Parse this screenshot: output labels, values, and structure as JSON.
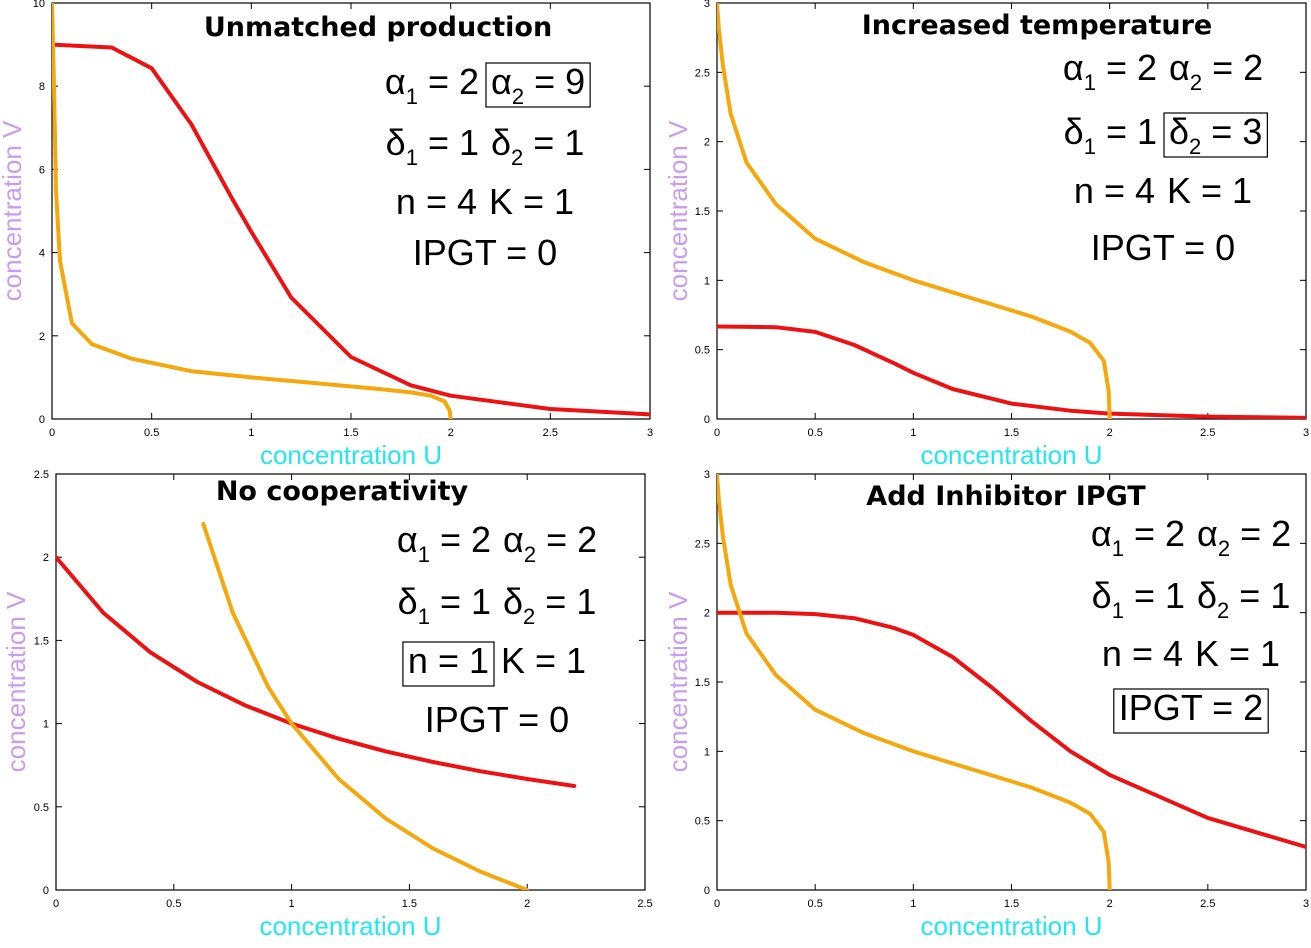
{
  "colors": {
    "V_nullcline": "#ee1111",
    "U_nullcline": "#f5a70c",
    "xlabel": "#22e6f2",
    "ylabel": "#c99cf0",
    "axis": "#000000"
  },
  "chart_data": [
    {
      "type": "line",
      "title": "Unmatched production",
      "xlabel": "concentration U",
      "ylabel": "concentration V",
      "xlim": [
        0,
        3
      ],
      "ylim": [
        0,
        10
      ],
      "xticks": [
        "0",
        "0.5",
        "1",
        "1.5",
        "2",
        "2.5",
        "3"
      ],
      "yticks": [
        "0",
        "2",
        "4",
        "6",
        "8",
        "10"
      ],
      "grid": false,
      "params": {
        "a1": 2,
        "a2": 9,
        "d1": 1,
        "d2": 1,
        "n": 4,
        "K": 1,
        "ipgt": 0
      },
      "highlight": "a2",
      "series": [
        {
          "role": "V",
          "points": [
            [
              0,
              9
            ],
            [
              0.3,
              8.93
            ],
            [
              0.5,
              8.43
            ],
            [
              0.7,
              7.08
            ],
            [
              0.9,
              5.33
            ],
            [
              1,
              4.5
            ],
            [
              1.2,
              2.92
            ],
            [
              1.5,
              1.49
            ],
            [
              1.8,
              0.81
            ],
            [
              2,
              0.56
            ],
            [
              2.5,
              0.24
            ],
            [
              3,
              0.11
            ]
          ]
        },
        {
          "role": "U",
          "points": [
            [
              0,
              10
            ],
            [
              0.01,
              8
            ],
            [
              0.02,
              5.5
            ],
            [
              0.04,
              3.8
            ],
            [
              0.1,
              2.3
            ],
            [
              0.2,
              1.8
            ],
            [
              0.4,
              1.45
            ],
            [
              0.7,
              1.15
            ],
            [
              1,
              1
            ],
            [
              1.3,
              0.87
            ],
            [
              1.6,
              0.74
            ],
            [
              1.8,
              0.64
            ],
            [
              1.9,
              0.56
            ],
            [
              1.97,
              0.42
            ],
            [
              1.995,
              0.2
            ],
            [
              2,
              0
            ]
          ]
        }
      ]
    },
    {
      "type": "line",
      "title": "Increased temperature",
      "xlabel": "concentration U",
      "ylabel": "concentration V",
      "xlim": [
        0,
        3
      ],
      "ylim": [
        0,
        3
      ],
      "xticks": [
        "0",
        "0.5",
        "1",
        "1.5",
        "2",
        "2.5",
        "3"
      ],
      "yticks": [
        "0",
        "0.5",
        "1",
        "1.5",
        "2",
        "2.5",
        "3"
      ],
      "grid": false,
      "params": {
        "a1": 2,
        "a2": 2,
        "d1": 1,
        "d2": 3,
        "n": 4,
        "K": 1,
        "ipgt": 0
      },
      "highlight": "d2",
      "series": [
        {
          "role": "V",
          "points": [
            [
              0,
              0.667
            ],
            [
              0.3,
              0.662
            ],
            [
              0.5,
              0.628
            ],
            [
              0.7,
              0.534
            ],
            [
              0.9,
              0.403
            ],
            [
              1,
              0.333
            ],
            [
              1.2,
              0.216
            ],
            [
              1.5,
              0.111
            ],
            [
              1.8,
              0.06
            ],
            [
              2,
              0.039
            ],
            [
              2.5,
              0.017
            ],
            [
              3,
              0.008
            ]
          ]
        },
        {
          "role": "U",
          "points": [
            [
              0,
              3
            ],
            [
              0.01,
              2.8
            ],
            [
              0.03,
              2.55
            ],
            [
              0.07,
              2.2
            ],
            [
              0.15,
              1.85
            ],
            [
              0.3,
              1.55
            ],
            [
              0.5,
              1.3
            ],
            [
              0.75,
              1.13
            ],
            [
              1,
              1
            ],
            [
              1.3,
              0.87
            ],
            [
              1.6,
              0.74
            ],
            [
              1.8,
              0.63
            ],
            [
              1.9,
              0.55
            ],
            [
              1.97,
              0.42
            ],
            [
              1.995,
              0.2
            ],
            [
              2,
              0
            ]
          ]
        }
      ]
    },
    {
      "type": "line",
      "title": "No cooperativity",
      "xlabel": "concentration U",
      "ylabel": "concentration V",
      "xlim": [
        0,
        2.5
      ],
      "ylim": [
        0,
        2.5
      ],
      "xticks": [
        "0",
        "0.5",
        "1",
        "1.5",
        "2",
        "2.5"
      ],
      "yticks": [
        "0",
        "0.5",
        "1",
        "1.5",
        "2",
        "2.5"
      ],
      "grid": false,
      "params": {
        "a1": 2,
        "a2": 2,
        "d1": 1,
        "d2": 1,
        "n": 1,
        "K": 1,
        "ipgt": 0
      },
      "highlight": "n",
      "series": [
        {
          "role": "V",
          "points": [
            [
              0,
              2
            ],
            [
              0.2,
              1.667
            ],
            [
              0.4,
              1.429
            ],
            [
              0.6,
              1.25
            ],
            [
              0.8,
              1.111
            ],
            [
              1,
              1
            ],
            [
              1.2,
              0.909
            ],
            [
              1.4,
              0.833
            ],
            [
              1.6,
              0.769
            ],
            [
              1.8,
              0.714
            ],
            [
              2,
              0.667
            ],
            [
              2.2,
              0.625
            ]
          ]
        },
        {
          "role": "U",
          "points": [
            [
              0.625,
              2.2
            ],
            [
              0.75,
              1.667
            ],
            [
              0.9,
              1.222
            ],
            [
              1,
              1
            ],
            [
              1.2,
              0.667
            ],
            [
              1.4,
              0.429
            ],
            [
              1.6,
              0.25
            ],
            [
              1.8,
              0.111
            ],
            [
              2,
              0
            ]
          ]
        }
      ]
    },
    {
      "type": "line",
      "title": "Add Inhibitor IPGT",
      "xlabel": "concentration U",
      "ylabel": "concentration V",
      "xlim": [
        0,
        3
      ],
      "ylim": [
        0,
        3
      ],
      "xticks": [
        "0",
        "0.5",
        "1",
        "1.5",
        "2",
        "2.5",
        "3"
      ],
      "yticks": [
        "0",
        "0.5",
        "1",
        "1.5",
        "2",
        "2.5",
        "3"
      ],
      "grid": false,
      "params": {
        "a1": 2,
        "a2": 2,
        "d1": 1,
        "d2": 1,
        "n": 4,
        "K": 1,
        "ipgt": 2
      },
      "highlight": "ipgt",
      "series": [
        {
          "role": "V",
          "points": [
            [
              0,
              2
            ],
            [
              0.3,
              1.999
            ],
            [
              0.5,
              1.99
            ],
            [
              0.7,
              1.96
            ],
            [
              0.9,
              1.89
            ],
            [
              1,
              1.84
            ],
            [
              1.2,
              1.68
            ],
            [
              1.4,
              1.46
            ],
            [
              1.6,
              1.22
            ],
            [
              1.8,
              1
            ],
            [
              2,
              0.83
            ],
            [
              2.5,
              0.52
            ],
            [
              3,
              0.31
            ]
          ]
        },
        {
          "role": "U",
          "points": [
            [
              0,
              3
            ],
            [
              0.01,
              2.8
            ],
            [
              0.03,
              2.55
            ],
            [
              0.07,
              2.2
            ],
            [
              0.15,
              1.85
            ],
            [
              0.3,
              1.55
            ],
            [
              0.5,
              1.3
            ],
            [
              0.75,
              1.13
            ],
            [
              1,
              1
            ],
            [
              1.3,
              0.87
            ],
            [
              1.6,
              0.74
            ],
            [
              1.8,
              0.63
            ],
            [
              1.9,
              0.55
            ],
            [
              1.97,
              0.42
            ],
            [
              1.995,
              0.2
            ],
            [
              2,
              0
            ]
          ]
        }
      ]
    }
  ]
}
